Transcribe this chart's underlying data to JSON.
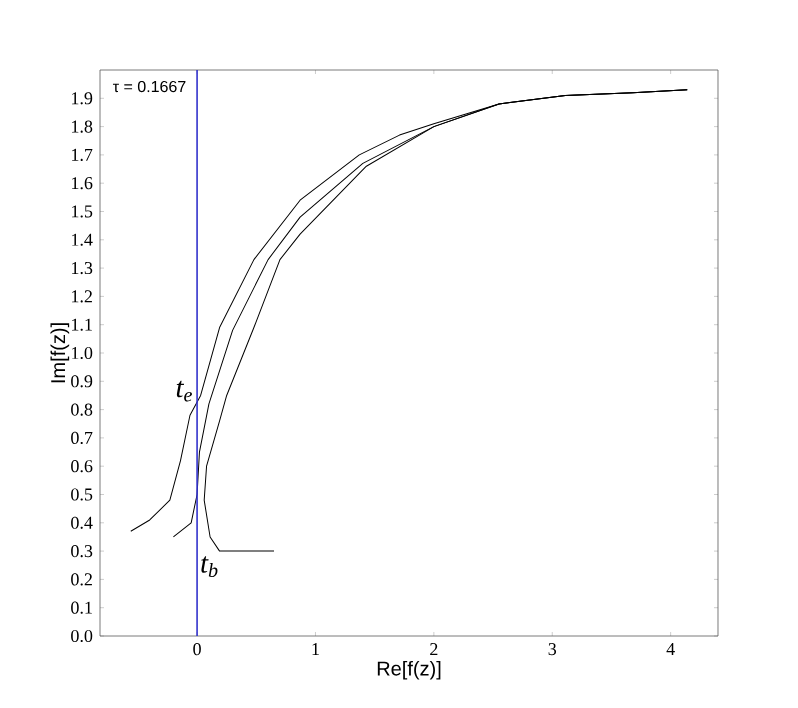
{
  "chart_data": {
    "type": "line",
    "xlabel": "Re[f(z)]",
    "ylabel": "Im[f(z)]",
    "xlim": [
      -0.82,
      4.4
    ],
    "ylim": [
      0,
      2.0
    ],
    "xticks": [
      0,
      1,
      2,
      3,
      4
    ],
    "yticks": [
      {
        "value": 0,
        "label": "0.0"
      },
      0.1,
      0.2,
      0.3,
      0.4,
      0.5,
      0.6,
      0.7,
      0.8,
      0.9,
      {
        "value": 1.0,
        "label": "1.0"
      },
      1.1,
      1.2,
      1.3,
      1.4,
      1.5,
      1.6,
      1.7,
      1.8,
      1.9
    ],
    "series": [
      {
        "color": "#000000",
        "x": [
          -0.56,
          -0.4,
          -0.23,
          -0.14,
          -0.06,
          0.03,
          0.19,
          0.48,
          0.87,
          1.37,
          1.71,
          2.0,
          2.55,
          3.11,
          3.68,
          4.14
        ],
        "values": [
          0.37,
          0.41,
          0.48,
          0.62,
          0.78,
          0.85,
          1.09,
          1.33,
          1.54,
          1.7,
          1.77,
          1.81,
          1.88,
          1.91,
          1.92,
          1.93
        ]
      },
      {
        "color": "#000000",
        "x": [
          -0.2,
          -0.05,
          0.0,
          0.02,
          0.1,
          0.3,
          0.6,
          0.87,
          1.4,
          2.0,
          2.55,
          3.11,
          3.68,
          4.14
        ],
        "values": [
          0.35,
          0.4,
          0.5,
          0.65,
          0.82,
          1.08,
          1.33,
          1.48,
          1.67,
          1.8,
          1.88,
          1.91,
          1.92,
          1.93
        ]
      },
      {
        "color": "#000000",
        "x": [
          0.65,
          0.4,
          0.19,
          0.11,
          0.06,
          0.08,
          0.19,
          0.25,
          0.48,
          0.7,
          0.87,
          1.43,
          2.0,
          2.55,
          3.11,
          3.68,
          4.14
        ],
        "values": [
          0.3,
          0.3,
          0.3,
          0.35,
          0.48,
          0.6,
          0.76,
          0.85,
          1.09,
          1.33,
          1.42,
          1.66,
          1.8,
          1.88,
          1.91,
          1.92,
          1.93
        ]
      }
    ],
    "ref_lines": [
      {
        "axis": "x",
        "value": 0,
        "color": "#3333cc"
      }
    ],
    "annotations": [
      "τ = 0.1667",
      "t$_{e}$",
      "t$_{b}$"
    ],
    "grid": false
  }
}
